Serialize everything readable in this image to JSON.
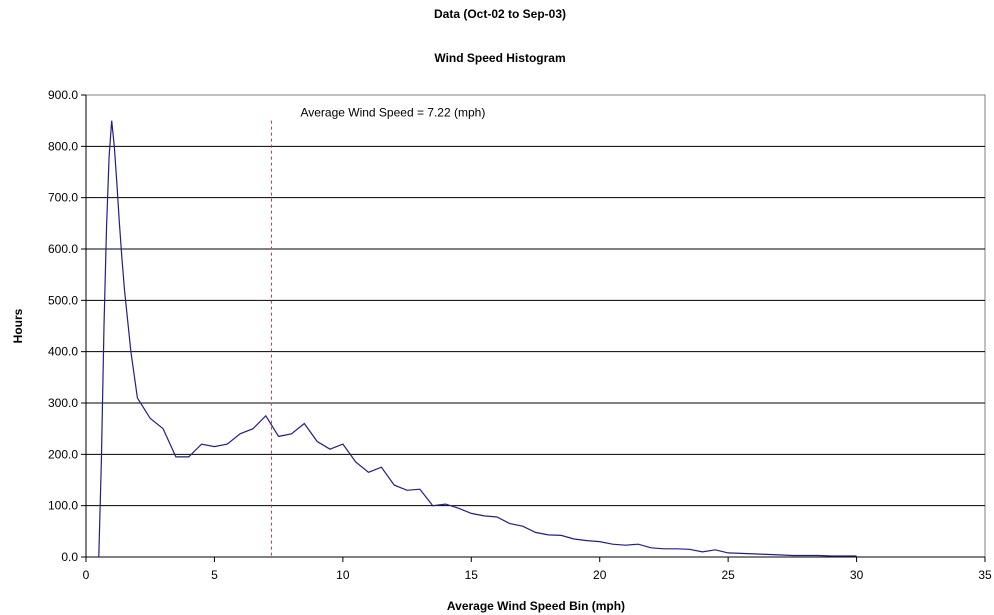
{
  "chart_data": {
    "type": "line",
    "title": "Data (Oct-02 to Sep-03)",
    "subtitle": "Wind Speed Histogram",
    "xlabel": "Average Wind Speed Bin (mph)",
    "ylabel": "Hours",
    "xlim": [
      0,
      35
    ],
    "ylim": [
      0,
      900
    ],
    "x_ticks": [
      "0",
      "5",
      "10",
      "15",
      "20",
      "25",
      "30",
      "35"
    ],
    "y_ticks": [
      "0.0",
      "100.0",
      "200.0",
      "300.0",
      "400.0",
      "500.0",
      "600.0",
      "700.0",
      "800.0",
      "900.0"
    ],
    "grid": true,
    "legend": "none",
    "annotation": {
      "text": "Average Wind Speed = 7.22 (mph)",
      "x": 7.22,
      "line_top": 850,
      "color": "#e03030"
    },
    "series": [
      {
        "color": "#1f1f8c",
        "x": [
          0.5,
          0.6,
          0.7,
          0.8,
          0.9,
          1.0,
          1.1,
          1.2,
          1.3,
          1.4,
          1.5,
          1.75,
          2.0,
          2.5,
          3.0,
          3.5,
          4.0,
          4.5,
          5.0,
          5.5,
          6.0,
          6.5,
          7.0,
          7.5,
          8.0,
          8.5,
          9.0,
          9.5,
          10.0,
          10.5,
          11.0,
          11.5,
          12.0,
          12.5,
          13.0,
          13.5,
          14.0,
          14.5,
          15.0,
          15.5,
          16.0,
          16.5,
          17.0,
          17.5,
          18.0,
          18.5,
          19.0,
          19.5,
          20.0,
          20.5,
          21.0,
          21.5,
          22.0,
          22.5,
          23.0,
          23.5,
          24.0,
          24.5,
          25.0,
          25.5,
          26.0,
          26.5,
          27.0,
          27.5,
          28.0,
          28.5,
          29.0,
          29.5,
          30.0
        ],
        "y": [
          0,
          190,
          450,
          640,
          780,
          850,
          800,
          730,
          650,
          580,
          520,
          400,
          310,
          270,
          250,
          195,
          195,
          220,
          215,
          220,
          240,
          250,
          275,
          235,
          240,
          260,
          225,
          210,
          220,
          185,
          165,
          175,
          140,
          130,
          132,
          100,
          103,
          95,
          85,
          80,
          78,
          65,
          60,
          48,
          43,
          42,
          35,
          32,
          30,
          25,
          23,
          25,
          18,
          16,
          16,
          15,
          10,
          14,
          8,
          7,
          6,
          5,
          4,
          3,
          3,
          3,
          2,
          2,
          2
        ]
      }
    ]
  }
}
